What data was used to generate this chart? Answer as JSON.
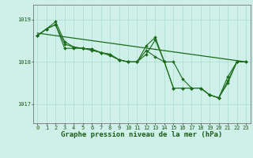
{
  "line1": {
    "x": [
      0,
      1,
      2,
      3,
      4,
      5,
      6,
      7,
      8,
      9,
      10,
      11,
      12,
      13,
      14,
      15,
      16,
      17,
      18,
      19,
      20,
      21,
      22,
      23
    ],
    "y": [
      1018.62,
      1018.78,
      1018.95,
      1018.48,
      1018.35,
      1018.32,
      1018.3,
      1018.22,
      1018.18,
      1018.05,
      1018.0,
      1018.0,
      1018.27,
      1018.12,
      1018.0,
      1017.38,
      1017.38,
      1017.38,
      1017.38,
      1017.22,
      1017.15,
      1017.55,
      1018.0,
      null
    ]
  },
  "line2": {
    "x": [
      0,
      1,
      2,
      3,
      4,
      5,
      6,
      7,
      8,
      9,
      10,
      11,
      12,
      13,
      14,
      15,
      16,
      17,
      18,
      19,
      20,
      21,
      22,
      23
    ],
    "y": [
      1018.62,
      1018.78,
      1018.88,
      1018.42,
      1018.35,
      1018.32,
      1018.3,
      1018.22,
      1018.18,
      1018.05,
      1018.0,
      1018.0,
      1018.18,
      1018.52,
      1018.0,
      1018.0,
      1017.6,
      1017.38,
      1017.38,
      1017.22,
      1017.15,
      1017.65,
      1018.0,
      1018.0
    ]
  },
  "line3": {
    "x": [
      0,
      1,
      2,
      3,
      4,
      5,
      6,
      7,
      8,
      9,
      10,
      11,
      12,
      13,
      14,
      15,
      16,
      17,
      18,
      19,
      20,
      21,
      22,
      23
    ],
    "y": [
      1018.62,
      1018.78,
      1018.88,
      1018.32,
      1018.32,
      1018.32,
      1018.27,
      1018.22,
      1018.15,
      1018.05,
      1018.0,
      1018.0,
      1018.38,
      1018.58,
      1018.0,
      1017.38,
      1017.38,
      1017.38,
      1017.38,
      1017.22,
      1017.15,
      1017.5,
      1018.0,
      1018.0
    ]
  },
  "trend_line": {
    "x": [
      0,
      23
    ],
    "y": [
      1018.68,
      1018.0
    ]
  },
  "line_color": "#1a6b1a",
  "line_width": 0.8,
  "marker": "D",
  "markersize": 2.0,
  "trend_linewidth": 0.9,
  "background_color": "#cff0e8",
  "grid_color": "#9dd8c8",
  "axis_color": "#606060",
  "text_color": "#1a5c1a",
  "xlabel": "Graphe pression niveau de la mer (hPa)",
  "xlim": [
    -0.5,
    23.5
  ],
  "ylim": [
    1016.55,
    1019.35
  ],
  "yticks": [
    1017,
    1018,
    1019
  ],
  "xticks": [
    0,
    1,
    2,
    3,
    4,
    5,
    6,
    7,
    8,
    9,
    10,
    11,
    12,
    13,
    14,
    15,
    16,
    17,
    18,
    19,
    20,
    21,
    22,
    23
  ],
  "tick_fontsize": 5.0,
  "xlabel_fontsize": 6.5
}
